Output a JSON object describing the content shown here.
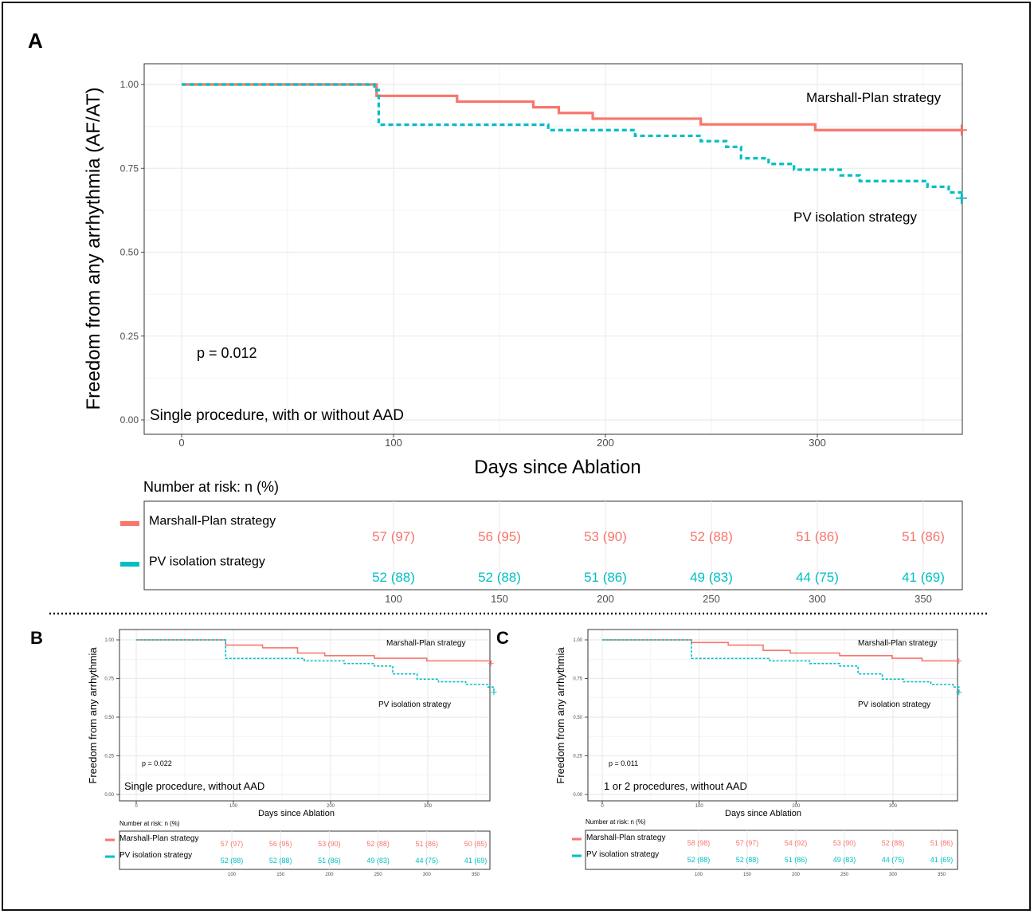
{
  "colors": {
    "marshall": "#F8766D",
    "pv": "#00BFC4",
    "grid": "#EBEBEB",
    "axis": "#4D4D4D"
  },
  "chart_data": [
    {
      "panel_label": "A",
      "type": "line",
      "subtype": "kaplan-meier step",
      "xlabel": "Days since Ablation",
      "ylabel": "Freedom from any arrhythmia (AF/AT)",
      "xlim": [
        -17,
        365
      ],
      "ylim": [
        -0.05,
        1.05
      ],
      "xticks": [
        "0",
        "100",
        "200",
        "300"
      ],
      "yticks": [
        "0.00",
        "0.25",
        "0.50",
        "0.75",
        "1.00"
      ],
      "grid": true,
      "pvalue": "p = 0.012",
      "condition": "Single procedure, with or without AAD",
      "series": [
        {
          "name": "Marshall-Plan strategy",
          "line": "solid",
          "x": [
            0,
            92,
            130,
            166,
            178,
            194,
            245,
            299,
            368
          ],
          "y": [
            1.0,
            0.966,
            0.949,
            0.932,
            0.915,
            0.898,
            0.881,
            0.864,
            0.864
          ]
        },
        {
          "name": "PV isolation strategy",
          "line": "dashed",
          "x": [
            0,
            91,
            93,
            173,
            214,
            245,
            257,
            264,
            277,
            289,
            311,
            320,
            339,
            352,
            362,
            368
          ],
          "y": [
            1.0,
            0.983,
            0.88,
            0.864,
            0.847,
            0.831,
            0.814,
            0.78,
            0.763,
            0.746,
            0.729,
            0.712,
            0.712,
            0.695,
            0.678,
            0.661
          ]
        }
      ],
      "risk_table": {
        "title": "Number at risk: n (%)",
        "times": [
          "100",
          "150",
          "200",
          "250",
          "300",
          "350"
        ],
        "rows": [
          {
            "label": "Marshall-Plan strategy",
            "values": [
              "57 (97)",
              "56 (95)",
              "53 (90)",
              "52 (88)",
              "51 (86)",
              "51 (86)"
            ]
          },
          {
            "label": "PV isolation strategy",
            "values": [
              "52 (88)",
              "52 (88)",
              "51 (86)",
              "49 (83)",
              "44 (75)",
              "41 (69)"
            ]
          }
        ]
      }
    },
    {
      "panel_label": "B",
      "type": "line",
      "subtype": "kaplan-meier step",
      "xlabel": "Days since Ablation",
      "ylabel": "Freedom from any arrhythmia",
      "xlim": [
        -17,
        365
      ],
      "ylim": [
        -0.05,
        1.05
      ],
      "xticks": [
        "0",
        "100",
        "200",
        "300"
      ],
      "yticks": [
        "0.00",
        "0.25",
        "0.50",
        "0.75",
        "1.00"
      ],
      "grid": true,
      "pvalue": "p = 0.022",
      "condition": "Single procedure, without AAD",
      "series": [
        {
          "name": "Marshall-Plan strategy",
          "line": "solid",
          "x": [
            0,
            92,
            130,
            166,
            194,
            245,
            299,
            365
          ],
          "y": [
            1.0,
            0.966,
            0.949,
            0.915,
            0.898,
            0.881,
            0.864,
            0.847
          ]
        },
        {
          "name": "PV isolation strategy",
          "line": "dashed",
          "x": [
            0,
            92,
            173,
            214,
            245,
            264,
            289,
            311,
            339,
            362,
            368
          ],
          "y": [
            1.0,
            0.88,
            0.864,
            0.847,
            0.831,
            0.78,
            0.746,
            0.729,
            0.712,
            0.695,
            0.661
          ]
        }
      ],
      "risk_table": {
        "title": "Number at risk: n (%)",
        "times": [
          "100",
          "150",
          "200",
          "250",
          "300",
          "350"
        ],
        "rows": [
          {
            "label": "Marshall-Plan strategy",
            "values": [
              "57 (97)",
              "56 (95)",
              "53 (90)",
              "52 (88)",
              "51 (86)",
              "50 (85)"
            ]
          },
          {
            "label": "PV isolation strategy",
            "values": [
              "52 (88)",
              "52 (88)",
              "51 (86)",
              "49 (83)",
              "44 (75)",
              "41 (69)"
            ]
          }
        ]
      }
    },
    {
      "panel_label": "C",
      "type": "line",
      "subtype": "kaplan-meier step",
      "xlabel": "Days since Ablation",
      "ylabel": "Freedom from any arrhythmia",
      "xlim": [
        -17,
        365
      ],
      "ylim": [
        -0.05,
        1.05
      ],
      "xticks": [
        "0",
        "100",
        "200",
        "300"
      ],
      "yticks": [
        "0.00",
        "0.25",
        "0.50",
        "0.75",
        "1.00"
      ],
      "grid": true,
      "pvalue": "p = 0.011",
      "condition": "1 or 2 procedures, without AAD",
      "series": [
        {
          "name": "Marshall-Plan strategy",
          "line": "solid",
          "x": [
            0,
            92,
            130,
            166,
            194,
            245,
            299,
            330,
            368
          ],
          "y": [
            1.0,
            0.983,
            0.966,
            0.932,
            0.915,
            0.898,
            0.881,
            0.864,
            0.864
          ]
        },
        {
          "name": "PV isolation strategy",
          "line": "dashed",
          "x": [
            0,
            92,
            173,
            214,
            245,
            264,
            289,
            311,
            339,
            362,
            368
          ],
          "y": [
            1.0,
            0.88,
            0.864,
            0.847,
            0.831,
            0.78,
            0.746,
            0.729,
            0.712,
            0.695,
            0.661
          ]
        }
      ],
      "risk_table": {
        "title": "Number at risk: n (%)",
        "times": [
          "100",
          "150",
          "200",
          "250",
          "300",
          "350"
        ],
        "rows": [
          {
            "label": "Marshall-Plan strategy",
            "values": [
              "58 (98)",
              "57 (97)",
              "54 (92)",
              "53 (90)",
              "52 (88)",
              "51 (86)"
            ]
          },
          {
            "label": "PV isolation strategy",
            "values": [
              "52 (88)",
              "52 (88)",
              "51 (86)",
              "49 (83)",
              "44 (75)",
              "41 (69)"
            ]
          }
        ]
      }
    }
  ]
}
